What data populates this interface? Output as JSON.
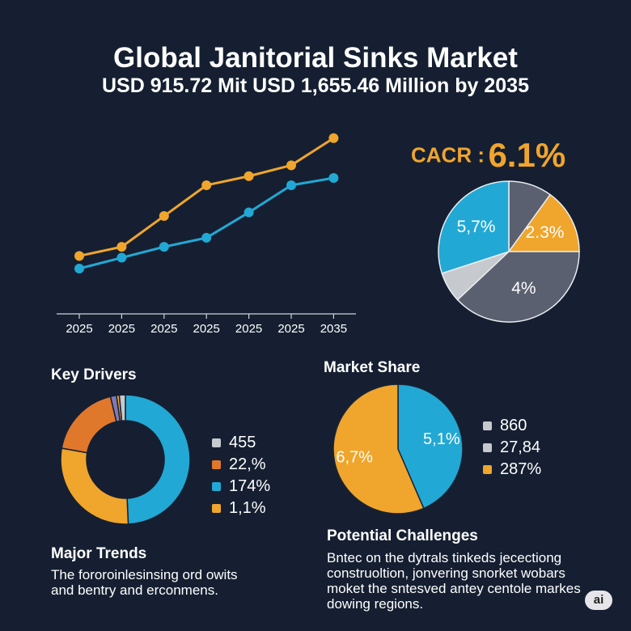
{
  "title": "Global Janitorial Sinks Market",
  "subtitle": "USD 915.72 Mit USD 1,655.46 Million by 2035",
  "cagr": {
    "label": "CACR :",
    "value": "6.1%"
  },
  "colors": {
    "orange": "#f0a52c",
    "blue": "#22a8d4",
    "darkgray": "#5b6070",
    "lightgray": "#c6cacf",
    "burnt": "#e0782c",
    "purple": "#7e7ab6",
    "bg": "#151f31"
  },
  "chart_data": [
    {
      "type": "line",
      "x_labels": [
        "2025",
        "2025",
        "2025",
        "2025",
        "2025",
        "2025",
        "2035"
      ],
      "series": [
        {
          "color": "#f0a52c",
          "values": [
            32,
            37,
            54,
            71,
            76,
            82,
            97
          ]
        },
        {
          "color": "#22a8d4",
          "values": [
            25,
            31,
            37,
            42,
            56,
            71,
            75
          ]
        }
      ],
      "ylim": [
        0,
        100
      ]
    },
    {
      "type": "pie",
      "slices": [
        {
          "label": "",
          "value": 10,
          "color": "#5b6070"
        },
        {
          "label": "2.3%",
          "value": 15,
          "color": "#f0a52c"
        },
        {
          "label": "4%",
          "value": 38,
          "color": "#5b6070"
        },
        {
          "label": "",
          "value": 7,
          "color": "#c6cacf"
        },
        {
          "label": "5,7%",
          "value": 30,
          "color": "#22a8d4"
        }
      ]
    },
    {
      "type": "pie",
      "title": "Key Drivers",
      "donut": true,
      "slices": [
        {
          "value": 49.3,
          "color": "#22a8d4"
        },
        {
          "value": 28.5,
          "color": "#f0a52c"
        },
        {
          "value": 18.5,
          "color": "#e0782c"
        },
        {
          "value": 1.5,
          "color": "#7e7ab6"
        },
        {
          "value": 0.7,
          "color": "#f0a52c"
        },
        {
          "value": 1.5,
          "color": "#c6cacf"
        }
      ],
      "legend": [
        {
          "label": "455",
          "color": "#c6cacf"
        },
        {
          "label": "22,%",
          "color": "#e0782c"
        },
        {
          "label": "174%",
          "color": "#22a8d4"
        },
        {
          "label": "1,1%",
          "color": "#f0a52c"
        }
      ]
    },
    {
      "type": "pie",
      "title": "Market Share",
      "slices": [
        {
          "label": "5,1%",
          "value": 43.5,
          "color": "#22a8d4"
        },
        {
          "label": "6,7%",
          "value": 56.5,
          "color": "#f0a52c"
        }
      ],
      "legend": [
        {
          "label": "860",
          "color": "#c6cacf"
        },
        {
          "label": "27,84",
          "color": "#c6cacf"
        },
        {
          "label": "287%",
          "color": "#f0a52c"
        }
      ]
    }
  ],
  "major_trends": {
    "title": "Major Trends",
    "lines": [
      "The fororoinlesinsing ord owits",
      "and bentry and erconmens."
    ]
  },
  "challenges": {
    "title": "Potential Challenges",
    "lines": [
      "Bntec on the dytrals tinkeds jecectiong",
      "construoltion, jonvering snorket wobars",
      "moket the sntesved antey centole markes",
      "dowing regions."
    ]
  },
  "badge": "ai"
}
